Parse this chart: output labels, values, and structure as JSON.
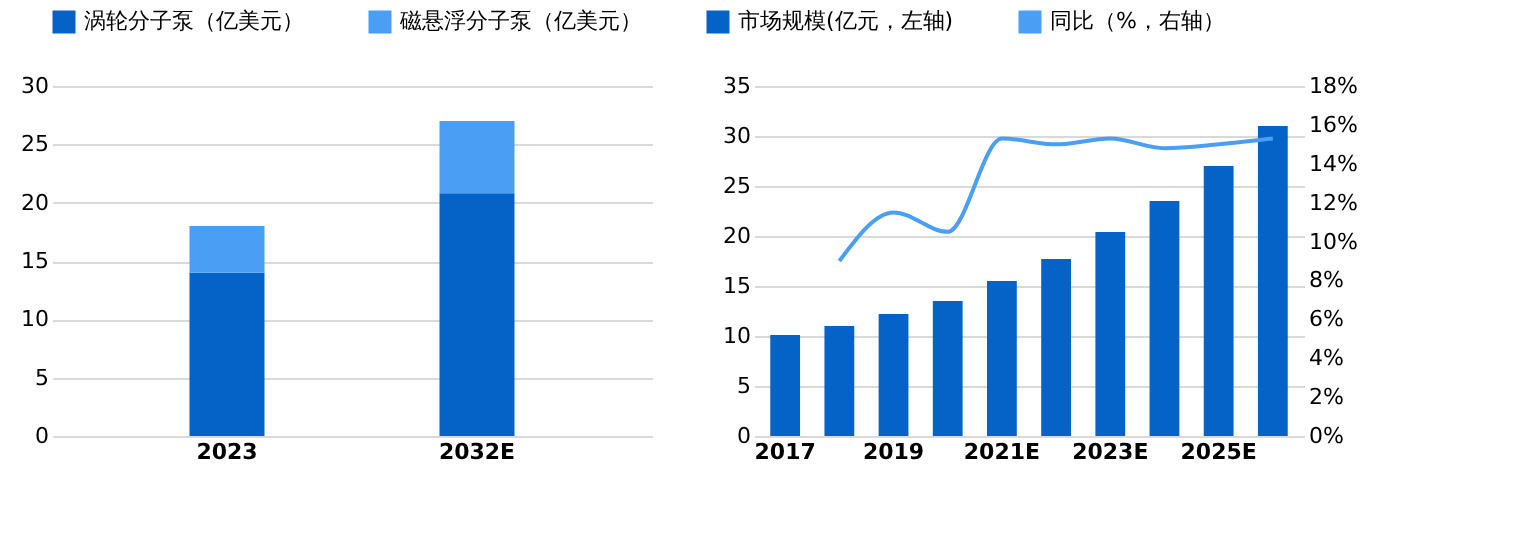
{
  "chart_data": [
    {
      "type": "bar",
      "stacked": true,
      "categories": [
        "2023",
        "2032E"
      ],
      "ylim": [
        0,
        30
      ],
      "yticks": [
        0,
        5,
        10,
        15,
        20,
        25,
        30
      ],
      "grid": "y",
      "legend": "top",
      "series": [
        {
          "name": "涡轮分子泵（亿美元）",
          "color": "#0563c7",
          "values": [
            14.0,
            20.8
          ]
        },
        {
          "name": "磁悬浮分子泵（亿美元）",
          "color": "#4a9ff5",
          "values": [
            4.0,
            6.2
          ]
        }
      ]
    },
    {
      "type": "bar",
      "categories": [
        "2017",
        null,
        "2019",
        null,
        "2021E",
        null,
        "2023E",
        null,
        "2025E",
        null
      ],
      "ylim": [
        0,
        35
      ],
      "yticks": [
        0,
        5,
        10,
        15,
        20,
        25,
        30,
        35
      ],
      "y2lim": [
        0,
        18
      ],
      "y2ticks": [
        {
          "value": 0,
          "label": "0%"
        },
        {
          "value": 2,
          "label": "2%"
        },
        {
          "value": 4,
          "label": "4%"
        },
        {
          "value": 6,
          "label": "6%"
        },
        {
          "value": 8,
          "label": "8%"
        },
        {
          "value": 10,
          "label": "10%"
        },
        {
          "value": 12,
          "label": "12%"
        },
        {
          "value": 14,
          "label": "14%"
        },
        {
          "value": 16,
          "label": "16%"
        },
        {
          "value": 18,
          "label": "18%"
        }
      ],
      "grid": "y",
      "legend": "top",
      "series": [
        {
          "name": "市场规模(亿元，左轴)",
          "color": "#0563c7",
          "values": [
            10.1,
            11.0,
            12.2,
            13.5,
            15.5,
            17.7,
            20.4,
            23.5,
            27.0,
            31.0
          ]
        },
        {
          "name": "同比（%，右轴）",
          "type": "line",
          "axis": "y2",
          "color": "#4a9ff5",
          "values": [
            null,
            9.0,
            11.5,
            10.5,
            15.3,
            15.0,
            15.3,
            14.8,
            15.0,
            15.3
          ]
        }
      ]
    }
  ]
}
